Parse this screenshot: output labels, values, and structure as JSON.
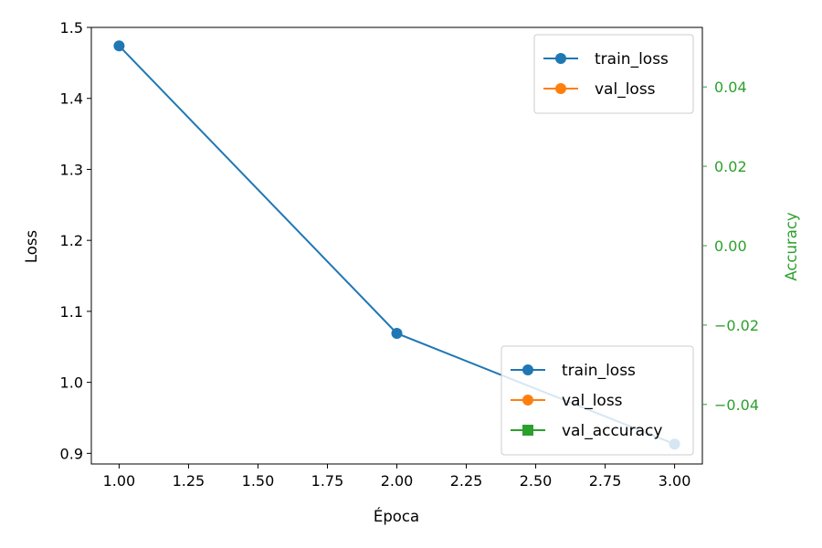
{
  "chart_data": {
    "type": "line",
    "xlabel": "Época",
    "ylabel": "Loss",
    "y2label": "Accuracy",
    "xlim": [
      0.9,
      3.1
    ],
    "ylim": [
      0.885,
      1.5
    ],
    "y2lim": [
      -0.055,
      0.055
    ],
    "x_ticks": [
      1.0,
      1.25,
      1.5,
      1.75,
      2.0,
      2.25,
      2.5,
      2.75,
      3.0
    ],
    "x_tick_labels": [
      "1.00",
      "1.25",
      "1.50",
      "1.75",
      "2.00",
      "2.25",
      "2.50",
      "2.75",
      "3.00"
    ],
    "y_ticks": [
      0.9,
      1.0,
      1.1,
      1.2,
      1.3,
      1.4,
      1.5
    ],
    "y_tick_labels": [
      "0.9",
      "1.0",
      "1.1",
      "1.2",
      "1.3",
      "1.4",
      "1.5"
    ],
    "y2_ticks": [
      -0.04,
      -0.02,
      0.0,
      0.02,
      0.04
    ],
    "y2_tick_labels": [
      "−0.04",
      "−0.02",
      "0.00",
      "0.02",
      "0.04"
    ],
    "grid": false,
    "series": [
      {
        "name": "train_loss",
        "axis": "left",
        "color": "#1f77b4",
        "marker": "circle",
        "x": [
          1,
          2,
          3
        ],
        "y": [
          1.474,
          1.069,
          0.913
        ]
      },
      {
        "name": "val_loss",
        "axis": "left",
        "color": "#ff7f0e",
        "marker": "circle",
        "x": [],
        "y": []
      },
      {
        "name": "val_accuracy",
        "axis": "right",
        "color": "#2ca02c",
        "marker": "square",
        "x": [],
        "y": []
      }
    ],
    "legends": [
      {
        "placement": "upper-right",
        "entries": [
          "train_loss",
          "val_loss"
        ]
      },
      {
        "placement": "lower-right",
        "entries": [
          "train_loss",
          "val_loss",
          "val_accuracy"
        ]
      }
    ],
    "colors": {
      "right_axis": "#2ca02c"
    }
  }
}
